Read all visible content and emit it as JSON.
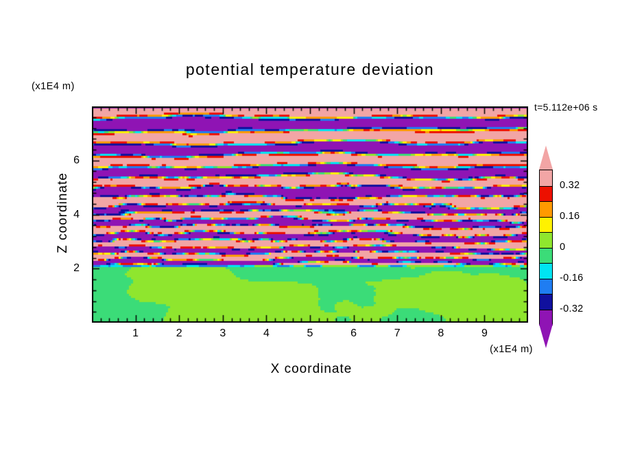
{
  "figure": {
    "background": "#FFFFFF"
  },
  "chart_data": {
    "type": "heatmap",
    "title": "potential temperature deviation",
    "xlabel": "X coordinate",
    "ylabel": "Z coordinate",
    "x_unit": "(x1E4 m)",
    "y_unit": "(x1E4 m)",
    "time_label": "t=5.112e+06 s",
    "xlim": [
      0,
      10
    ],
    "ylim": [
      0,
      8
    ],
    "x_ticks": [
      1,
      2,
      3,
      4,
      5,
      6,
      7,
      8,
      9
    ],
    "y_ticks": [
      2,
      4,
      6
    ],
    "x_minor_step": 0.2,
    "y_minor_step": 0.4,
    "grid": false,
    "legend_position": "right-colorbar",
    "colorbar": {
      "tick_labels": [
        "0.32",
        "0.16",
        "0",
        "-0.16",
        "-0.32"
      ],
      "thresholds": [
        0.32,
        0.24,
        0.16,
        0.08,
        0,
        -0.08,
        -0.16,
        -0.24,
        -0.32
      ],
      "segments": [
        {
          "label": "above 0.32",
          "color": "#F2A5A5"
        },
        {
          "label": "0.24 to 0.32",
          "color": "#ED1000"
        },
        {
          "label": "0.16 to 0.24",
          "color": "#FF9A00"
        },
        {
          "label": "0.08 to 0.16",
          "color": "#FFF200"
        },
        {
          "label": "0 to 0.08",
          "color": "#8FE62E"
        },
        {
          "label": "-0.08 to 0",
          "color": "#3BDC78"
        },
        {
          "label": "-0.16 to -0.08",
          "color": "#00E4F2"
        },
        {
          "label": "-0.24 to -0.16",
          "color": "#1F7DF2"
        },
        {
          "label": "-0.32 to -0.24",
          "color": "#10109E"
        },
        {
          "label": "below -0.32",
          "color": "#8F14B4"
        }
      ],
      "top_arrow_color": "#F2A5A5",
      "bottom_arrow_color": "#8F14B4"
    },
    "field": {
      "description": "Filled-contour potential temperature deviation: stratified region above z~2.1 (x1E4 m) shows alternating positive (pink, >0.32) and negative (purple, <-0.32) horizontal wave bands whose vertical wavelength increases with height; many thin turbulent rainbow streaks (red/orange/yellow/cyan/blue) between z~2.1 and 4.5; below z~2.1 a well-mixed near-zero layer of green (-0.08 to 0) with chartreuse (0 to 0.08) patches; thin purple band along the top edge and broken cyan/blue line at the interface.",
      "interface_z": 2.06,
      "base_wavelength": 0.36,
      "wavelength_growth": 0.115,
      "band_amplitude": 0.5,
      "mixed_layer_amplitude": 0.075,
      "turbulence_zmax": 4.3,
      "top_band_value": -0.45
    }
  }
}
